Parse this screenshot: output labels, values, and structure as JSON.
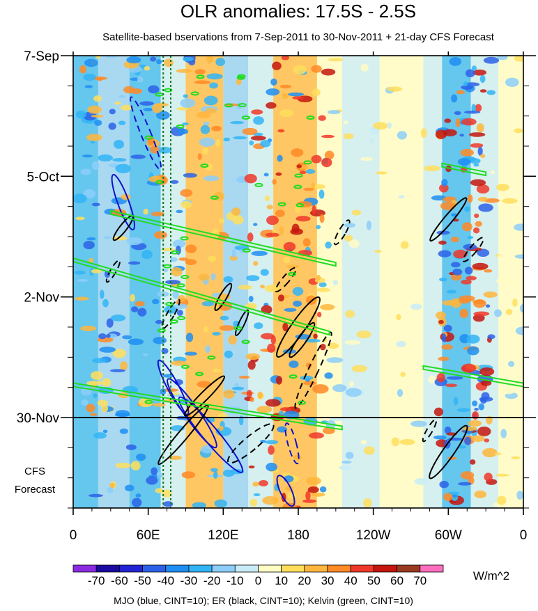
{
  "chart_data": {
    "type": "heatmap",
    "title": "OLR anomalies: 17.5S - 2.5S",
    "subtitle": "Satellite-based bservations from 7-Sep-2011 to 30-Nov-2011 + 21-day CFS Forecast",
    "x_ticks": [
      {
        "label": "0",
        "lon": 0
      },
      {
        "label": "60E",
        "lon": 60
      },
      {
        "label": "120E",
        "lon": 120
      },
      {
        "label": "180",
        "lon": 180
      },
      {
        "label": "120W",
        "lon": 240
      },
      {
        "label": "60W",
        "lon": 300
      },
      {
        "label": "0",
        "lon": 360
      }
    ],
    "xlim": [
      0,
      360
    ],
    "y_ticks": [
      {
        "label": "7-Sep",
        "day": 0
      },
      {
        "label": "5-Oct",
        "day": 28
      },
      {
        "label": "2-Nov",
        "day": 56
      },
      {
        "label": "30-Nov",
        "day": 84
      }
    ],
    "ylim": [
      0,
      105
    ],
    "forecast_start_day": 84,
    "forecast_label": [
      "CFS",
      "Forecast"
    ],
    "vertical_markers_lon": [
      72,
      78
    ],
    "colorbar": {
      "levels": [
        "-70",
        "-60",
        "-50",
        "-40",
        "-30",
        "-20",
        "-10",
        "0",
        "10",
        "20",
        "30",
        "40",
        "50",
        "60",
        "70"
      ],
      "colors": [
        "#8a2be2",
        "#1a0aa0",
        "#2224d2",
        "#2b61e8",
        "#1f8ef2",
        "#31b4f6",
        "#8ccef9",
        "#c8ecf7",
        "#fffcc4",
        "#ffde5c",
        "#ffb63c",
        "#ff8a26",
        "#f0382a",
        "#c4160e",
        "#9b3a22",
        "#ff6ebe"
      ],
      "units": "W/m^2"
    },
    "legend": "MJO (blue, CINT=10); ER (black, CINT=10); Kelvin (green, CINT=10)",
    "contour_series": [
      {
        "name": "MJO",
        "color": "#1010cc"
      },
      {
        "name": "ER",
        "color": "#000000"
      },
      {
        "name": "Kelvin",
        "color": "#20dd20"
      }
    ]
  }
}
